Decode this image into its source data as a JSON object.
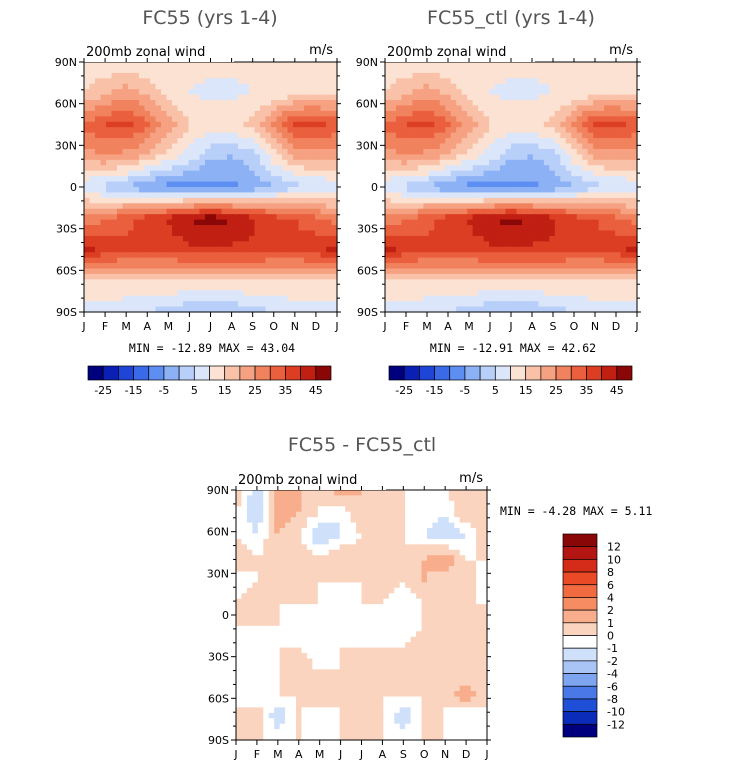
{
  "chart_data": [
    {
      "type": "heatmap",
      "title": "FC55 (yrs 1-4)",
      "subtitle": "200mb zonal wind",
      "units": "m/s",
      "stats": "MIN = -12.89 MAX =  43.04",
      "x_ticks": [
        "J",
        "F",
        "M",
        "A",
        "M",
        "J",
        "J",
        "A",
        "S",
        "O",
        "N",
        "D",
        "J"
      ],
      "y_ticks": [
        "90N",
        "60N",
        "30N",
        "0",
        "30S",
        "60S",
        "90S"
      ],
      "colorbar_labels": [
        "-25",
        "-15",
        "-5",
        "5",
        "15",
        "25",
        "35",
        "45"
      ],
      "colorbar_colors": [
        "#00007f",
        "#0a1fb4",
        "#1f45d6",
        "#3a6ae8",
        "#5d8ef2",
        "#8cb1f5",
        "#b7cff9",
        "#dbe6fb",
        "#fbe2d3",
        "#f9c2a8",
        "#f6a282",
        "#f1825e",
        "#ea5f3d",
        "#dc3e23",
        "#c01f12",
        "#8a0707"
      ],
      "field": "full",
      "min": -12.89,
      "max": 43.04,
      "grid_values": [
        [
          6,
          6,
          6,
          6,
          6,
          6,
          6,
          6,
          6,
          6,
          6,
          6,
          6
        ],
        [
          10,
          14,
          18,
          14,
          8,
          5,
          4,
          4,
          5,
          6,
          8,
          10,
          10
        ],
        [
          26,
          30,
          32,
          26,
          18,
          10,
          8,
          8,
          12,
          22,
          32,
          32,
          28
        ],
        [
          18,
          20,
          18,
          14,
          8,
          3,
          -4,
          -5,
          -2,
          8,
          16,
          18,
          18
        ],
        [
          1,
          -2,
          -5,
          -10,
          -12,
          -12,
          -12,
          -11,
          -9,
          -5,
          -2,
          0,
          1
        ],
        [
          22,
          24,
          28,
          32,
          36,
          40,
          43,
          40,
          36,
          32,
          30,
          26,
          22
        ],
        [
          36,
          34,
          32,
          32,
          32,
          34,
          34,
          34,
          34,
          32,
          32,
          34,
          36
        ],
        [
          10,
          10,
          10,
          10,
          10,
          10,
          10,
          10,
          10,
          10,
          10,
          10,
          10
        ],
        [
          2,
          2,
          1,
          0,
          -2,
          -4,
          -6,
          -4,
          -2,
          0,
          2,
          2,
          2
        ]
      ]
    },
    {
      "type": "heatmap",
      "title": "FC55_ctl (yrs 1-4)",
      "subtitle": "200mb zonal wind",
      "units": "m/s",
      "stats": "MIN = -12.91 MAX =  42.62",
      "x_ticks": [
        "J",
        "F",
        "M",
        "A",
        "M",
        "J",
        "J",
        "A",
        "S",
        "O",
        "N",
        "D",
        "J"
      ],
      "y_ticks": [
        "90N",
        "60N",
        "30N",
        "0",
        "30S",
        "60S",
        "90S"
      ],
      "colorbar_labels": [
        "-25",
        "-15",
        "-5",
        "5",
        "15",
        "25",
        "35",
        "45"
      ],
      "colorbar_colors": [
        "#00007f",
        "#0a1fb4",
        "#1f45d6",
        "#3a6ae8",
        "#5d8ef2",
        "#8cb1f5",
        "#b7cff9",
        "#dbe6fb",
        "#fbe2d3",
        "#f9c2a8",
        "#f6a282",
        "#f1825e",
        "#ea5f3d",
        "#dc3e23",
        "#c01f12",
        "#8a0707"
      ],
      "field": "full",
      "min": -12.91,
      "max": 42.62,
      "grid_values": [
        [
          6,
          6,
          6,
          6,
          6,
          6,
          6,
          6,
          6,
          6,
          6,
          6,
          6
        ],
        [
          10,
          14,
          18,
          14,
          8,
          5,
          4,
          4,
          5,
          6,
          8,
          10,
          10
        ],
        [
          26,
          30,
          32,
          26,
          18,
          10,
          8,
          8,
          12,
          22,
          32,
          32,
          28
        ],
        [
          18,
          20,
          18,
          14,
          8,
          3,
          -4,
          -5,
          -2,
          8,
          16,
          18,
          18
        ],
        [
          1,
          -2,
          -5,
          -10,
          -12,
          -12,
          -12,
          -11,
          -9,
          -5,
          -2,
          0,
          1
        ],
        [
          22,
          24,
          28,
          32,
          36,
          40,
          42,
          40,
          36,
          32,
          30,
          26,
          22
        ],
        [
          36,
          34,
          32,
          32,
          32,
          34,
          34,
          34,
          34,
          32,
          32,
          34,
          36
        ],
        [
          10,
          10,
          10,
          10,
          10,
          10,
          10,
          10,
          10,
          10,
          10,
          10,
          10
        ],
        [
          2,
          2,
          1,
          0,
          -2,
          -4,
          -6,
          -4,
          -2,
          0,
          2,
          2,
          2
        ]
      ]
    },
    {
      "type": "heatmap",
      "title": "FC55 - FC55_ctl",
      "subtitle": "200mb zonal wind",
      "units": "m/s",
      "stats": "MIN =   -4.28 MAX =   5.11",
      "x_ticks": [
        "J",
        "F",
        "M",
        "A",
        "M",
        "J",
        "J",
        "A",
        "S",
        "O",
        "N",
        "D",
        "J"
      ],
      "y_ticks": [
        "90N",
        "60N",
        "30N",
        "0",
        "30S",
        "60S",
        "90S"
      ],
      "colorbar_labels": [
        "12",
        "10",
        "8",
        "6",
        "4",
        "2",
        "1",
        "0",
        "-1",
        "-2",
        "-4",
        "-6",
        "-8",
        "-10",
        "-12"
      ],
      "colorbar_colors": [
        "#8a0707",
        "#b31612",
        "#d42c18",
        "#ea4a26",
        "#f26a3f",
        "#f68c62",
        "#f8ae8c",
        "#fbd4bf",
        "#ffffff",
        "#cfe0fb",
        "#a8c5f6",
        "#7ea6f0",
        "#4a78e6",
        "#1f4fd6",
        "#0a2cb8",
        "#00007f"
      ],
      "field": "diff",
      "min": -4.28,
      "max": 5.11,
      "grid_values": [
        [
          1,
          -2,
          2,
          1,
          0,
          2,
          1,
          1,
          0,
          -1,
          0,
          1,
          0
        ],
        [
          0,
          -2,
          2,
          1,
          0,
          -1,
          1,
          0,
          0,
          0,
          -1,
          1,
          0
        ],
        [
          0,
          -1,
          1,
          0,
          -2,
          -1,
          0,
          1,
          0,
          -1,
          -2,
          -1,
          1
        ],
        [
          1,
          0,
          1,
          1,
          0,
          1,
          1,
          0,
          0,
          1,
          2,
          0,
          0
        ],
        [
          -1,
          0,
          1,
          0,
          0,
          0,
          0,
          1,
          0,
          1,
          0,
          1,
          -1
        ],
        [
          0,
          1,
          0,
          0,
          0,
          -1,
          0,
          0,
          -1,
          0,
          0,
          0,
          0
        ],
        [
          0,
          0,
          0,
          -1,
          0,
          0,
          -1,
          0,
          -1,
          0,
          0,
          0,
          0
        ],
        [
          0,
          -1,
          0,
          0,
          -1,
          0,
          0,
          0,
          0,
          1,
          0,
          0,
          0
        ],
        [
          0,
          0,
          0,
          1,
          0,
          0,
          0,
          1,
          0,
          0,
          0,
          0,
          0
        ],
        [
          0,
          -1,
          0,
          0,
          1,
          0,
          0,
          0,
          0,
          0,
          0,
          2,
          0
        ],
        [
          0,
          1,
          -2,
          0,
          -1,
          0,
          1,
          0,
          -2,
          0,
          0,
          -1,
          0
        ],
        [
          0,
          0,
          0,
          0,
          0,
          0,
          0,
          0,
          0,
          0,
          0,
          0,
          0
        ]
      ]
    }
  ]
}
